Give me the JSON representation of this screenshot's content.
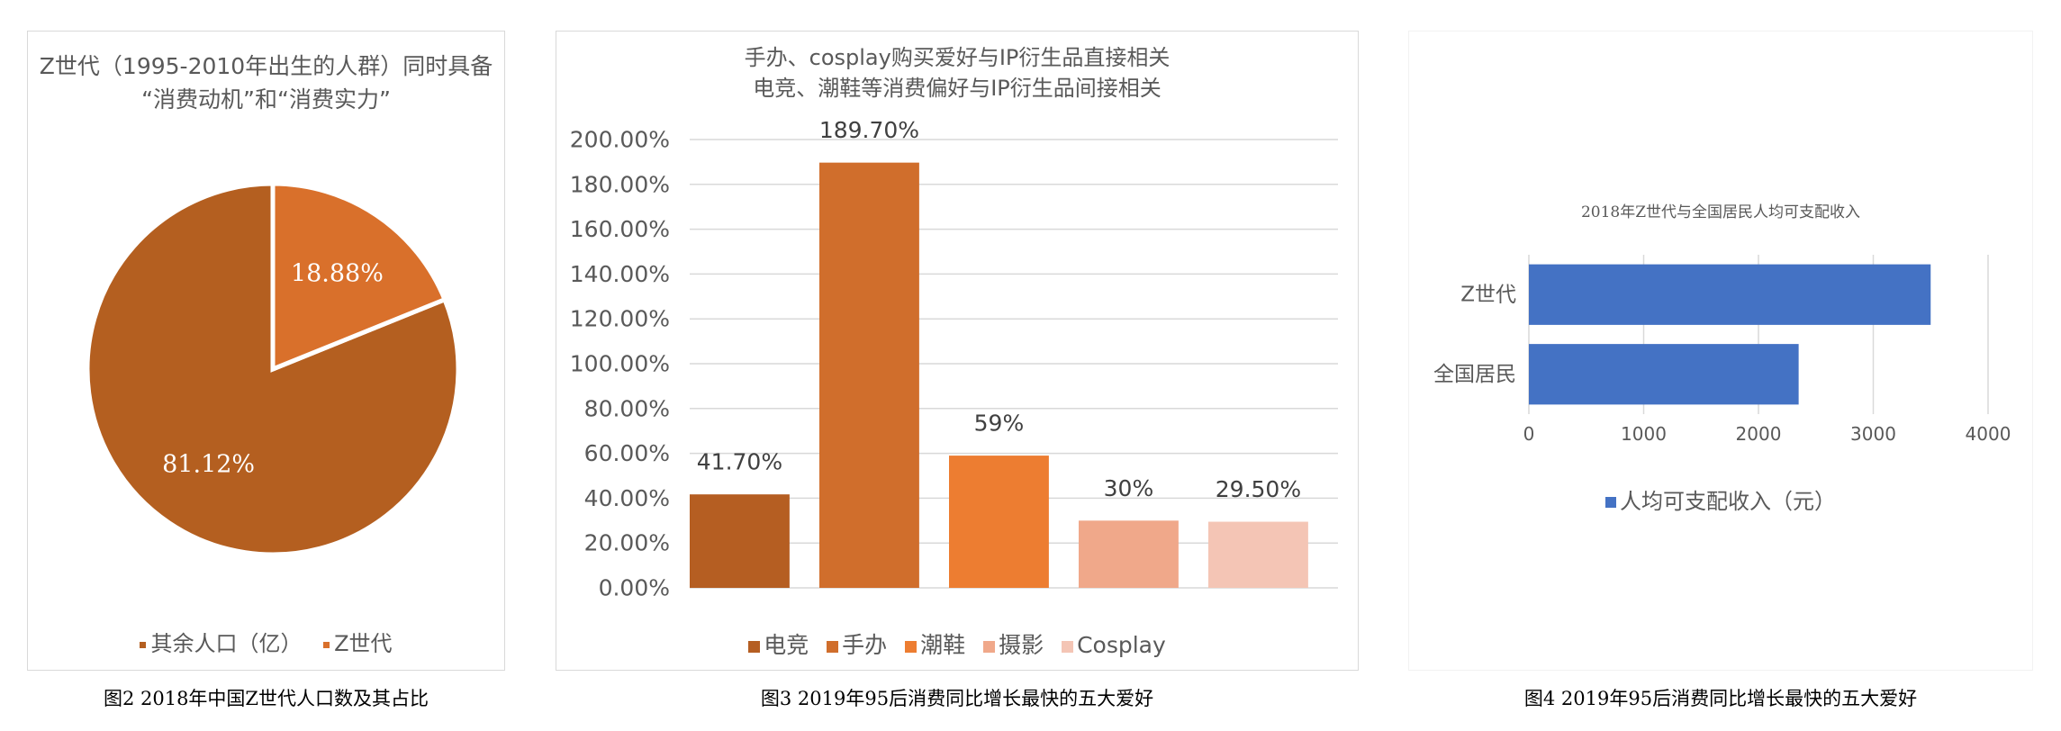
{
  "figure_captions": {
    "pie": "图2 2018年中国Z世代人口数及其占比",
    "bar": "图3 2019年95后消费同比增长最快的五大爱好",
    "hbar": "图4 2019年95后消费同比增长最快的五大爱好"
  },
  "chart_data": [
    {
      "type": "pie",
      "title_lines": [
        "Z世代（1995-2010年出生的人群）同时具备",
        "“消费动机”和“消费实力”"
      ],
      "slices": [
        {
          "label": "其余人口（亿）",
          "value": 81.12,
          "data_label": "81.12%",
          "color": "#b45f20"
        },
        {
          "label": "Z世代",
          "value": 18.88,
          "data_label": "18.88%",
          "color": "#d9702b"
        }
      ],
      "legend_position": "bottom"
    },
    {
      "type": "bar",
      "title_lines": [
        "手办、cosplay购买爱好与IP衍生品直接相关",
        "电竞、潮鞋等消费偏好与IP衍生品间接相关"
      ],
      "categories": [
        "电竞",
        "手办",
        "潮鞋",
        "摄影",
        "Cosplay"
      ],
      "values": [
        41.7,
        189.7,
        59,
        30,
        29.5
      ],
      "data_labels": [
        "41.70%",
        "189.70%",
        "59%",
        "30%",
        "29.50%"
      ],
      "colors": [
        "#b55e22",
        "#d06e2c",
        "#ed7d31",
        "#f0a88a",
        "#f4c5b5"
      ],
      "y_ticks": [
        "0.00%",
        "20.00%",
        "40.00%",
        "60.00%",
        "80.00%",
        "100.00%",
        "120.00%",
        "140.00%",
        "160.00%",
        "180.00%",
        "200.00%"
      ],
      "ylim": [
        0,
        200
      ],
      "grid": true,
      "legend_position": "bottom"
    },
    {
      "type": "bar",
      "orientation": "horizontal",
      "title": "2018年Z世代与全国居民人均可支配收入",
      "categories": [
        "Z世代",
        "全国居民"
      ],
      "series": [
        {
          "name": "人均可支配收入（元）",
          "values": [
            3500,
            2350
          ],
          "color": "#4472c4"
        }
      ],
      "x_ticks": [
        "0",
        "1000",
        "2000",
        "3000",
        "4000"
      ],
      "xlim": [
        0,
        4000
      ],
      "grid": true,
      "legend_position": "bottom"
    }
  ]
}
